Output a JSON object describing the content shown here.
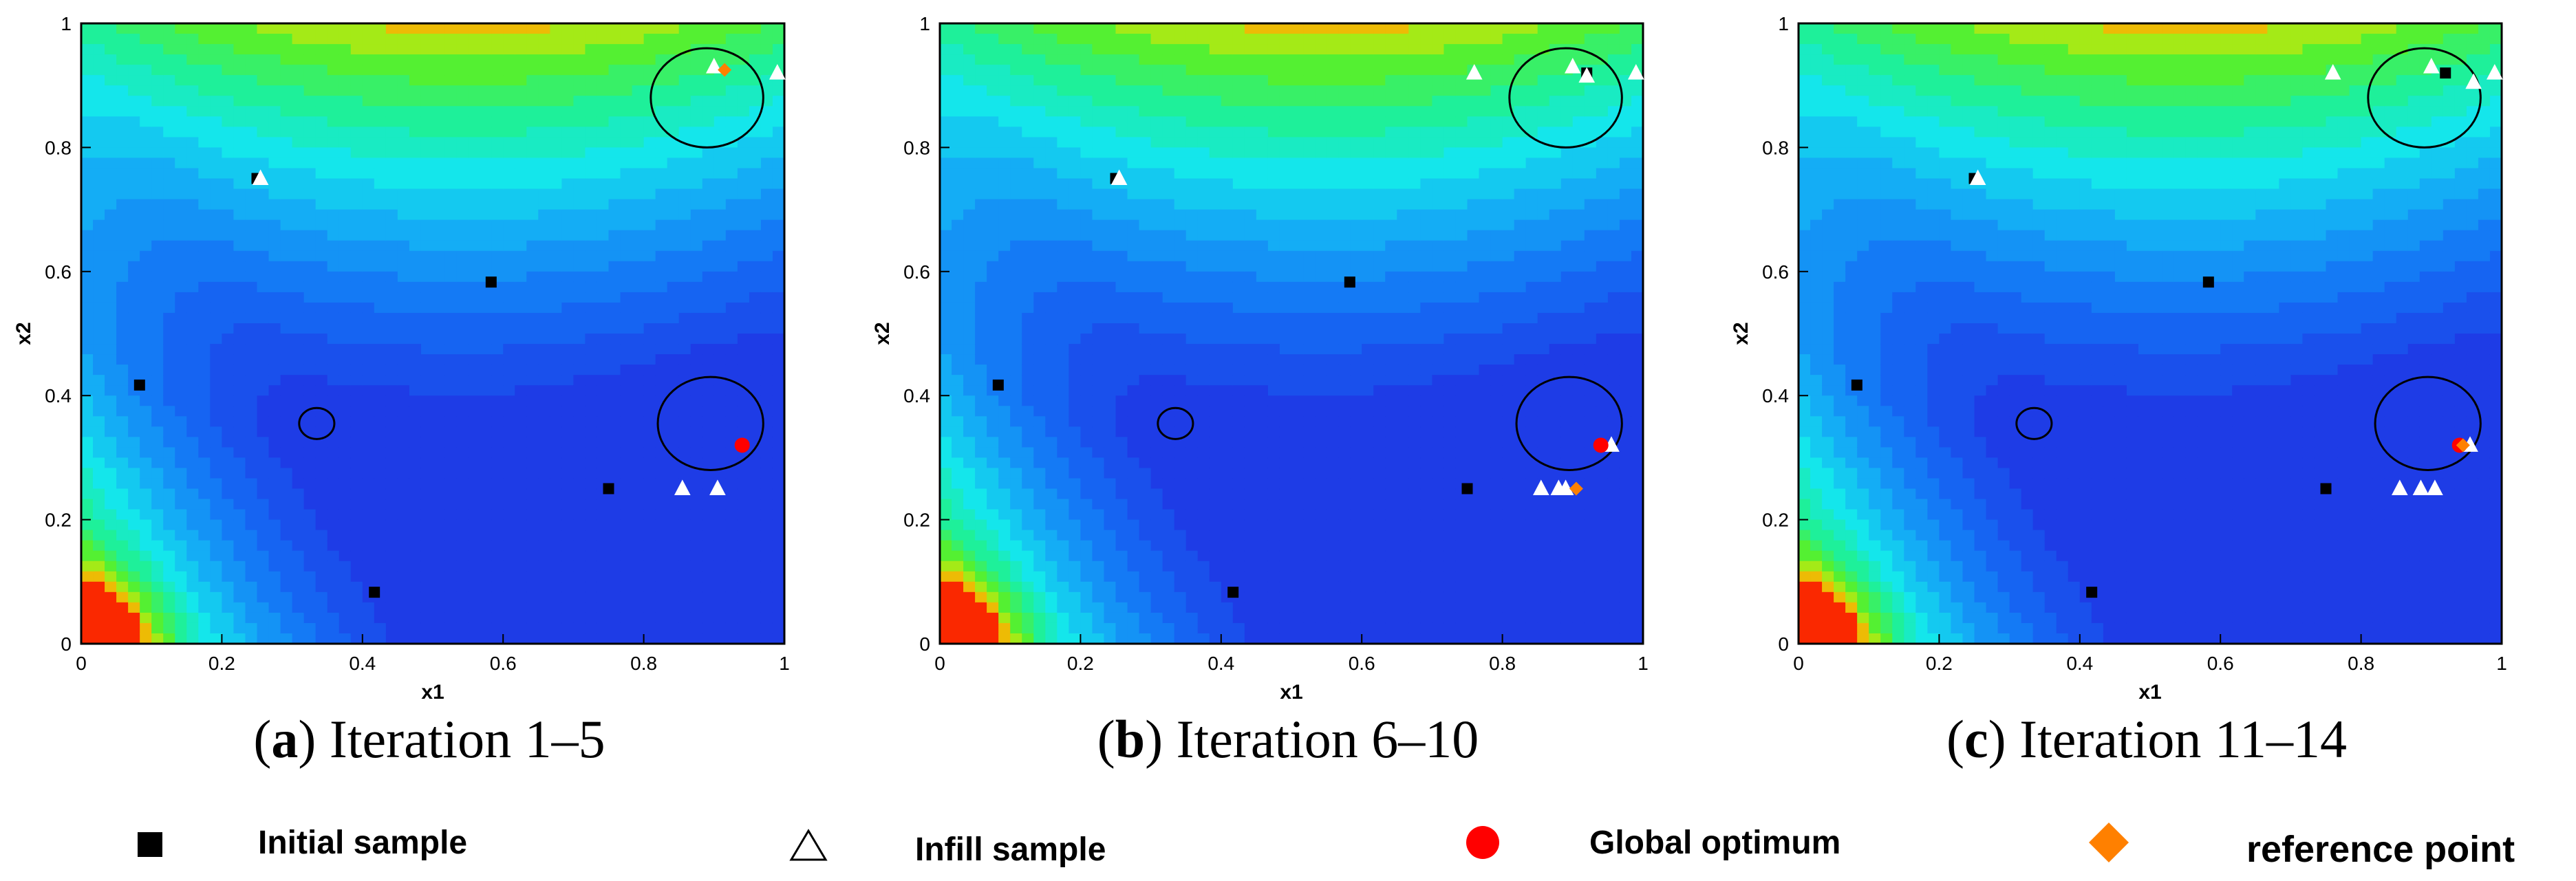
{
  "colors": {
    "initial": "#000000",
    "infill_fill": "#ffffff",
    "optimum": "#ff0000",
    "reference": "#ff8000"
  },
  "legend": {
    "initial_label": "Initial sample",
    "infill_label": "Infill sample",
    "optimum_label": "Global optimum",
    "reference_label": "reference point"
  },
  "chart_data": [
    {
      "type": "scatter",
      "subtype": "contour background (blue → cyan → green → orange/red)",
      "caption_letter": "a",
      "caption_text": " Iteration 1–5",
      "xlabel": "x1",
      "ylabel": "x2",
      "xlim": [
        0,
        1
      ],
      "ylim": [
        0,
        1
      ],
      "xticks": [
        "0",
        "0.2",
        "0.4",
        "0.6",
        "0.8",
        "1"
      ],
      "yticks": [
        "0",
        "0.2",
        "0.4",
        "0.6",
        "0.8",
        "1"
      ],
      "series": [
        {
          "name": "Initial sample",
          "points": [
            [
              0.25,
              0.75
            ],
            [
              0.583,
              0.583
            ],
            [
              0.083,
              0.417
            ],
            [
              0.75,
              0.25
            ],
            [
              0.417,
              0.083
            ]
          ]
        },
        {
          "name": "Infill sample",
          "points": [
            [
              0.9,
              0.93
            ],
            [
              0.99,
              0.92
            ],
            [
              0.855,
              0.25
            ],
            [
              0.905,
              0.25
            ],
            [
              0.255,
              0.75
            ]
          ]
        },
        {
          "name": "Global optimum",
          "points": [
            [
              0.94,
              0.32
            ]
          ]
        },
        {
          "name": "reference point",
          "points": [
            [
              0.915,
              0.925
            ]
          ]
        }
      ],
      "circles": [
        [
          0.89,
          0.88,
          0.08
        ],
        [
          0.895,
          0.355,
          0.075
        ],
        [
          0.335,
          0.355,
          0.025
        ]
      ]
    },
    {
      "type": "scatter",
      "subtype": "contour background (blue → cyan → green → orange/red)",
      "caption_letter": "b",
      "caption_text": " Iteration 6–10",
      "xlabel": "x1",
      "ylabel": "x2",
      "xlim": [
        0,
        1
      ],
      "ylim": [
        0,
        1
      ],
      "xticks": [
        "0",
        "0.2",
        "0.4",
        "0.6",
        "0.8",
        "1"
      ],
      "yticks": [
        "0",
        "0.2",
        "0.4",
        "0.6",
        "0.8",
        "1"
      ],
      "series": [
        {
          "name": "Initial sample",
          "points": [
            [
              0.25,
              0.75
            ],
            [
              0.583,
              0.583
            ],
            [
              0.083,
              0.417
            ],
            [
              0.75,
              0.25
            ],
            [
              0.417,
              0.083
            ],
            [
              0.92,
              0.92
            ]
          ]
        },
        {
          "name": "Infill sample",
          "points": [
            [
              0.76,
              0.92
            ],
            [
              0.9,
              0.93
            ],
            [
              0.92,
              0.915
            ],
            [
              0.99,
              0.92
            ],
            [
              0.855,
              0.25
            ],
            [
              0.88,
              0.25
            ],
            [
              0.89,
              0.25
            ],
            [
              0.955,
              0.32
            ],
            [
              0.255,
              0.75
            ]
          ]
        },
        {
          "name": "Global optimum",
          "points": [
            [
              0.94,
              0.32
            ]
          ]
        },
        {
          "name": "reference point",
          "points": [
            [
              0.905,
              0.25
            ]
          ]
        }
      ],
      "circles": [
        [
          0.89,
          0.88,
          0.08
        ],
        [
          0.895,
          0.355,
          0.075
        ],
        [
          0.335,
          0.355,
          0.025
        ]
      ]
    },
    {
      "type": "scatter",
      "subtype": "contour background (blue → cyan → green → orange/red)",
      "caption_letter": "c",
      "caption_text": " Iteration 11–14",
      "xlabel": "x1",
      "ylabel": "x2",
      "xlim": [
        0,
        1
      ],
      "ylim": [
        0,
        1
      ],
      "xticks": [
        "0",
        "0.2",
        "0.4",
        "0.6",
        "0.8",
        "1"
      ],
      "yticks": [
        "0",
        "0.2",
        "0.4",
        "0.6",
        "0.8",
        "1"
      ],
      "series": [
        {
          "name": "Initial sample",
          "points": [
            [
              0.25,
              0.75
            ],
            [
              0.583,
              0.583
            ],
            [
              0.083,
              0.417
            ],
            [
              0.75,
              0.25
            ],
            [
              0.417,
              0.083
            ],
            [
              0.92,
              0.92
            ]
          ]
        },
        {
          "name": "Infill sample",
          "points": [
            [
              0.76,
              0.92
            ],
            [
              0.9,
              0.93
            ],
            [
              0.96,
              0.905
            ],
            [
              0.99,
              0.92
            ],
            [
              0.855,
              0.25
            ],
            [
              0.885,
              0.25
            ],
            [
              0.905,
              0.25
            ],
            [
              0.955,
              0.32
            ],
            [
              0.255,
              0.75
            ]
          ]
        },
        {
          "name": "Global optimum",
          "points": [
            [
              0.94,
              0.32
            ]
          ]
        },
        {
          "name": "reference point",
          "points": [
            [
              0.945,
              0.32
            ]
          ]
        }
      ],
      "circles": [
        [
          0.89,
          0.88,
          0.08
        ],
        [
          0.895,
          0.355,
          0.075
        ],
        [
          0.335,
          0.355,
          0.025
        ]
      ]
    }
  ]
}
